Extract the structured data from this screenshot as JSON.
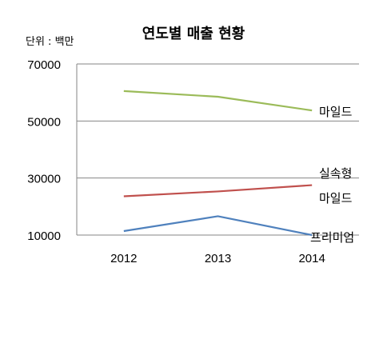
{
  "chart_data": {
    "type": "line",
    "title": "연도별 매출 현황",
    "unit_label": "단위 : 백만",
    "xlabel": "",
    "ylabel": "",
    "categories": [
      "2012",
      "2013",
      "2014"
    ],
    "ylim": [
      10000,
      70000
    ],
    "yticks": [
      10000,
      30000,
      50000,
      70000
    ],
    "grid": true,
    "legend": "inline-right",
    "series": [
      {
        "name": "마일드",
        "values": [
          60500,
          58500,
          53700
        ],
        "color": "#9bbb59"
      },
      {
        "label_lines": [
          "실속형",
          "마일드"
        ],
        "values": [
          23600,
          25300,
          27500
        ],
        "color": "#c0504d"
      },
      {
        "name": "프리미엄",
        "values": [
          11400,
          16600,
          10000
        ],
        "color": "#4f81bd"
      }
    ]
  }
}
